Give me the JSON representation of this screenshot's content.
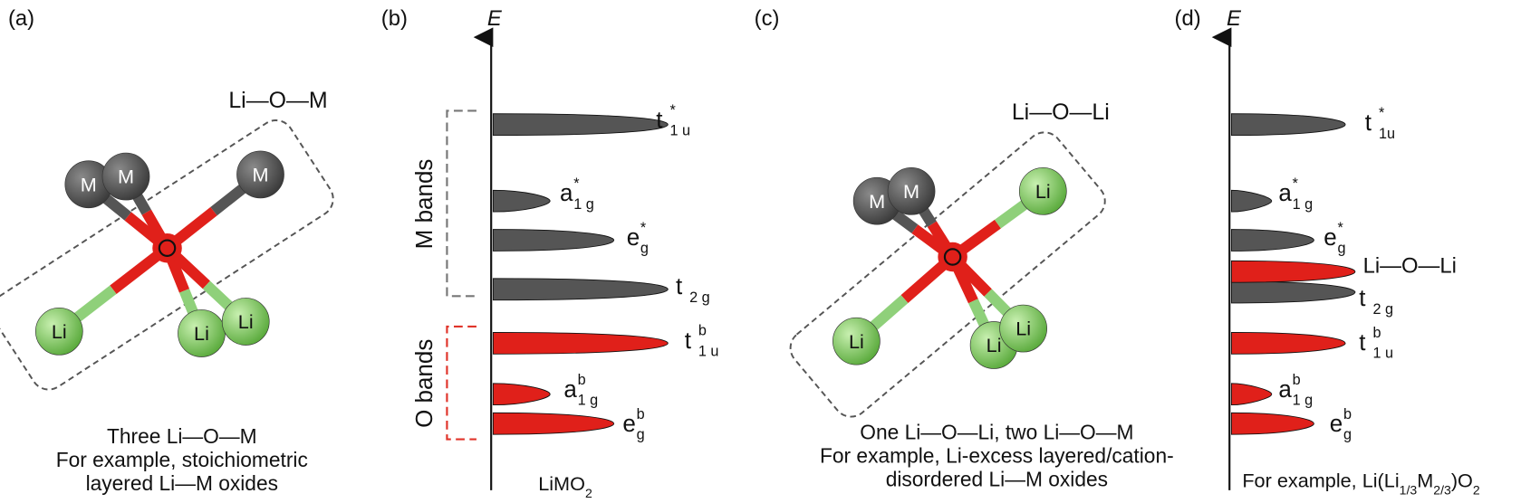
{
  "panels": [
    {
      "label": "(a)",
      "title": "Li—O—M",
      "atoms": [
        "M",
        "M",
        "M",
        "Li",
        "Li",
        "Li"
      ],
      "caption": [
        "Three Li—O—M",
        "For example, stoichiometric",
        "layered Li—M oxides"
      ]
    },
    {
      "label": "(b)",
      "axis": "E",
      "groups": [
        "M bands",
        "O bands"
      ],
      "levels": [
        {
          "base": "t",
          "sup": "*",
          "sub": "1 u"
        },
        {
          "base": "a",
          "sup": "*",
          "sub": "1 g"
        },
        {
          "base": "e",
          "sup": "*",
          "sub": "g"
        },
        {
          "base": "t",
          "sub": "2 g"
        },
        {
          "base": "t",
          "sup": "b",
          "sub": "1 u"
        },
        {
          "base": "a",
          "sup": "b",
          "sub": "1 g"
        },
        {
          "base": "e",
          "sup": "b",
          "sub": "g"
        }
      ],
      "caption": [
        {
          "text": "LiMO"
        },
        {
          "sub": "2"
        }
      ]
    },
    {
      "label": "(c)",
      "title": "Li—O—Li",
      "atoms": [
        "M",
        "M",
        "Li",
        "Li",
        "Li",
        "Li"
      ],
      "caption": [
        "One Li—O—Li, two Li—O—M",
        "For example, Li-excess layered/cation-",
        "disordered Li—M oxides"
      ]
    },
    {
      "label": "(d)",
      "axis": "E",
      "band_label": "Li—O—Li",
      "levels": [
        {
          "base": "t",
          "sup": "*",
          "sub": "1u"
        },
        {
          "base": "a",
          "sup": "*",
          "sub": "1 g"
        },
        {
          "base": "e",
          "sup": "*",
          "sub": "g"
        },
        {
          "base": "t",
          "sub": "2 g"
        },
        {
          "base": "t",
          "sup": "b",
          "sub": "1 u"
        },
        {
          "base": "a",
          "sup": "b",
          "sub": "1 g"
        },
        {
          "base": "e",
          "sup": "b",
          "sub": "g"
        }
      ],
      "caption": [
        {
          "text": "For example, Li(Li"
        },
        {
          "sub": "1/3"
        },
        {
          "text": "M"
        },
        {
          "sub": "2/3"
        },
        {
          "text": ")O"
        },
        {
          "sub": "2"
        }
      ]
    }
  ]
}
